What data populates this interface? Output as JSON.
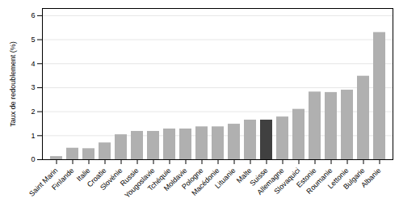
{
  "chart_data": {
    "type": "bar",
    "categories": [
      "Saint Marin",
      "Finlande",
      "Italie",
      "Croatie",
      "Slovénie",
      "Russie",
      "Yougoslavie",
      "Tchéquie",
      "Moldavie",
      "Pologne",
      "Macédonie",
      "Lituanie",
      "Malte",
      "Suisse",
      "Allemagne",
      "Slovaquici",
      "Estonie",
      "Roumanie",
      "Lettonie",
      "Bulgarie",
      "Albanie"
    ],
    "values": [
      0.13,
      0.48,
      0.46,
      0.7,
      1.04,
      1.18,
      1.18,
      1.28,
      1.28,
      1.37,
      1.37,
      1.48,
      1.65,
      1.65,
      1.78,
      2.1,
      2.82,
      2.8,
      2.9,
      3.48,
      5.3
    ],
    "colors": [
      "#b0b0b0",
      "#b0b0b0",
      "#b0b0b0",
      "#b0b0b0",
      "#b0b0b0",
      "#b0b0b0",
      "#b0b0b0",
      "#b0b0b0",
      "#b0b0b0",
      "#b0b0b0",
      "#b0b0b0",
      "#b0b0b0",
      "#b0b0b0",
      "#404040",
      "#b0b0b0",
      "#b0b0b0",
      "#b0b0b0",
      "#b0b0b0",
      "#b0b0b0",
      "#b0b0b0",
      "#b0b0b0"
    ],
    "ylabel": "Taux de redoublement (%)",
    "ylim": [
      0,
      6.3
    ],
    "yticks": [
      0,
      1,
      2,
      3,
      4,
      5,
      6
    ],
    "grid": true
  }
}
